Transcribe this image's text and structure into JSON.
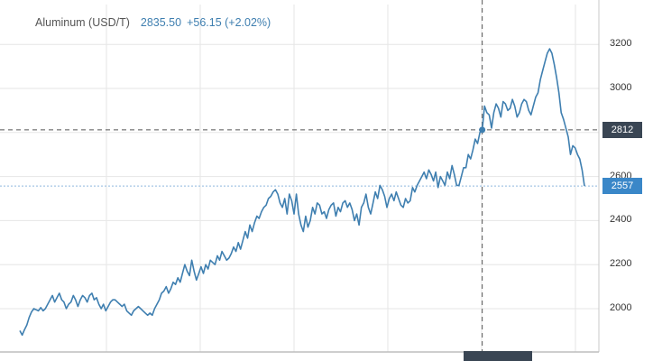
{
  "legend": {
    "name": "Aluminum (USD/T)",
    "price": "2835.50",
    "change": "+56.15 (+2.02%)"
  },
  "crosshair": {
    "price_label": "2812"
  },
  "last_price": {
    "label": "2557"
  },
  "colors": {
    "line": "#3f7fb0",
    "grid": "#e6e6e6",
    "crosshair": "#555555",
    "crosshair_tag": "#3a4654",
    "last_price_tag": "#3a87c8",
    "last_price_line": "#8fb8de"
  },
  "chart_data": {
    "type": "line",
    "title": "Aluminum (USD/T)",
    "yticks": [
      "2000",
      "2200",
      "2400",
      "2600",
      "2800",
      "3000",
      "3200"
    ],
    "ylim": [
      1880,
      3300
    ],
    "grid": true,
    "series": [
      {
        "name": "Aluminum (USD/T)",
        "values": [
          1900,
          1880,
          1905,
          1925,
          1960,
          1985,
          2000,
          1995,
          1990,
          2005,
          1990,
          2000,
          2020,
          2040,
          2060,
          2030,
          2050,
          2070,
          2040,
          2030,
          2000,
          2020,
          2030,
          2060,
          2040,
          2010,
          2040,
          2060,
          2050,
          2030,
          2060,
          2070,
          2040,
          2050,
          2020,
          2000,
          2020,
          1990,
          2010,
          2030,
          2040,
          2040,
          2030,
          2020,
          2010,
          2020,
          1990,
          1980,
          1970,
          1990,
          2000,
          2010,
          2000,
          1990,
          1980,
          1970,
          1980,
          1970,
          2000,
          2020,
          2040,
          2070,
          2080,
          2100,
          2070,
          2090,
          2120,
          2110,
          2140,
          2120,
          2160,
          2200,
          2170,
          2150,
          2220,
          2170,
          2130,
          2160,
          2190,
          2160,
          2200,
          2180,
          2220,
          2210,
          2200,
          2240,
          2220,
          2260,
          2240,
          2220,
          2230,
          2250,
          2280,
          2260,
          2300,
          2270,
          2310,
          2350,
          2320,
          2380,
          2350,
          2390,
          2420,
          2410,
          2440,
          2460,
          2470,
          2500,
          2510,
          2530,
          2540,
          2520,
          2480,
          2460,
          2500,
          2430,
          2520,
          2490,
          2430,
          2520,
          2430,
          2380,
          2350,
          2420,
          2370,
          2400,
          2460,
          2430,
          2480,
          2470,
          2430,
          2440,
          2410,
          2450,
          2470,
          2480,
          2420,
          2460,
          2440,
          2480,
          2490,
          2460,
          2480,
          2450,
          2400,
          2430,
          2380,
          2460,
          2480,
          2520,
          2460,
          2430,
          2480,
          2530,
          2500,
          2560,
          2540,
          2510,
          2460,
          2500,
          2520,
          2490,
          2530,
          2500,
          2470,
          2460,
          2500,
          2480,
          2490,
          2550,
          2530,
          2560,
          2580,
          2600,
          2620,
          2590,
          2630,
          2610,
          2580,
          2620,
          2550,
          2600,
          2580,
          2560,
          2620,
          2590,
          2650,
          2610,
          2560,
          2560,
          2600,
          2640,
          2640,
          2700,
          2680,
          2720,
          2770,
          2750,
          2800,
          2812,
          2920,
          2890,
          2880,
          2820,
          2890,
          2930,
          2910,
          2870,
          2940,
          2930,
          2900,
          2910,
          2950,
          2920,
          2870,
          2890,
          2930,
          2950,
          2940,
          2900,
          2880,
          2920,
          2960,
          2980,
          3040,
          3080,
          3120,
          3160,
          3180,
          3160,
          3110,
          3050,
          2980,
          2890,
          2860,
          2820,
          2780,
          2700,
          2740,
          2730,
          2700,
          2680,
          2630,
          2557
        ]
      }
    ]
  }
}
